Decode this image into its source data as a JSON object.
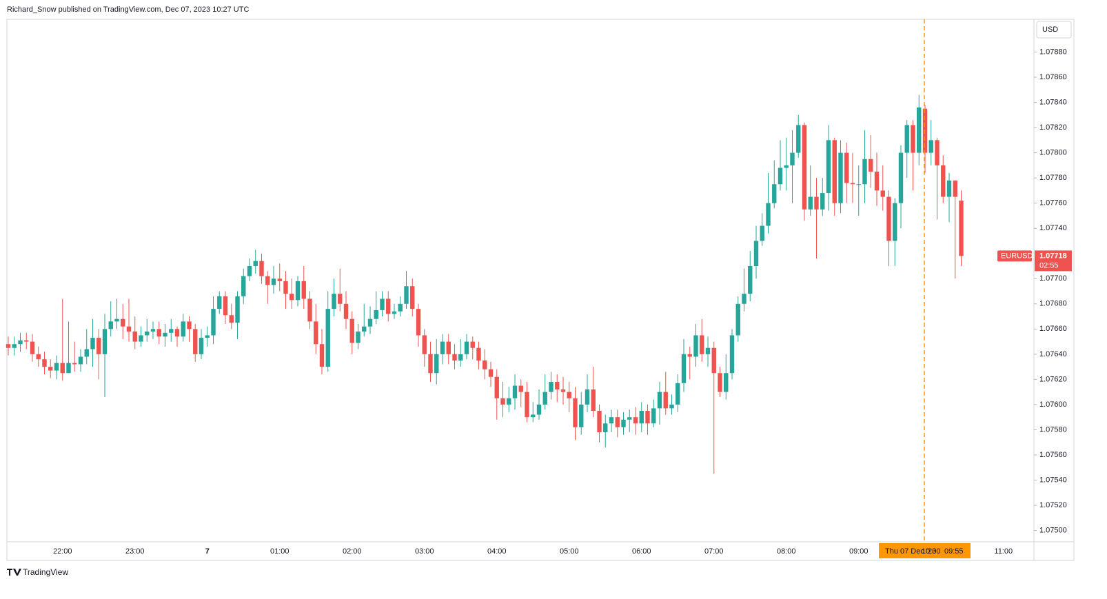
{
  "chart_data": {
    "type": "candlestick",
    "attribution": "Richard_Snow published on TradingView.com, Dec 07, 2023 10:27 UTC",
    "currency": "USD",
    "brand": "TradingView",
    "up_color": "#26a69a",
    "down_color": "#ef5350",
    "crosshair": {
      "date": "Thu 07 Dec '23",
      "time": "09:55"
    },
    "last_price": {
      "symbol": "EURUSD",
      "value": 1.07718,
      "countdown": "02:55"
    },
    "ylim": [
      1.07491,
      1.07906
    ],
    "yticks": [
      {
        "value": 1.075,
        "label": "1.07500"
      },
      {
        "value": 1.0752,
        "label": "1.07520"
      },
      {
        "value": 1.0754,
        "label": "1.07540"
      },
      {
        "value": 1.0756,
        "label": "1.07560"
      },
      {
        "value": 1.0758,
        "label": "1.07580"
      },
      {
        "value": 1.076,
        "label": "1.07600"
      },
      {
        "value": 1.0762,
        "label": "1.07620"
      },
      {
        "value": 1.0764,
        "label": "1.07640"
      },
      {
        "value": 1.0766,
        "label": "1.07660"
      },
      {
        "value": 1.0768,
        "label": "1.07680"
      },
      {
        "value": 1.077,
        "label": "1.07700"
      },
      {
        "value": 1.0774,
        "label": "1.07740"
      },
      {
        "value": 1.0776,
        "label": "1.07760"
      },
      {
        "value": 1.0778,
        "label": "1.07780"
      },
      {
        "value": 1.078,
        "label": "1.07800"
      },
      {
        "value": 1.0782,
        "label": "1.07820"
      },
      {
        "value": 1.0784,
        "label": "1.07840"
      },
      {
        "value": 1.0786,
        "label": "1.07860"
      },
      {
        "value": 1.0788,
        "label": "1.07880"
      }
    ],
    "categories": [
      null,
      null,
      null,
      null,
      null,
      null,
      null,
      null,
      null,
      "22:00",
      null,
      null,
      null,
      null,
      null,
      null,
      null,
      null,
      null,
      null,
      null,
      "23:00",
      null,
      null,
      null,
      null,
      null,
      null,
      null,
      null,
      null,
      null,
      null,
      "7",
      null,
      null,
      null,
      null,
      null,
      null,
      null,
      null,
      null,
      null,
      null,
      "01:00",
      null,
      null,
      null,
      null,
      null,
      null,
      null,
      null,
      null,
      null,
      null,
      "02:00",
      null,
      null,
      null,
      null,
      null,
      null,
      null,
      null,
      null,
      null,
      null,
      "03:00",
      null,
      null,
      null,
      null,
      null,
      null,
      null,
      null,
      null,
      null,
      null,
      "04:00",
      null,
      null,
      null,
      null,
      null,
      null,
      null,
      null,
      null,
      null,
      null,
      "05:00",
      null,
      null,
      null,
      null,
      null,
      null,
      null,
      null,
      null,
      null,
      null,
      "06:00",
      null,
      null,
      null,
      null,
      null,
      null,
      null,
      null,
      null,
      null,
      null,
      "07:00",
      null,
      null,
      null,
      null,
      null,
      null,
      null,
      null,
      null,
      null,
      null,
      "08:00",
      null,
      null,
      null,
      null,
      null,
      null,
      null,
      null,
      null,
      null,
      null,
      "09:00",
      null,
      null,
      null,
      null,
      null,
      null,
      null,
      null,
      null,
      null,
      null,
      "10:00",
      null,
      null,
      null,
      null,
      null,
      null,
      null,
      null,
      null,
      null,
      null,
      "11:00"
    ],
    "open": [
      1.07648,
      1.07645,
      1.07648,
      1.07651,
      1.0765,
      1.0764,
      1.07636,
      1.0763,
      1.07627,
      1.07633,
      1.07625,
      1.07633,
      1.07632,
      1.07638,
      1.07644,
      1.07653,
      1.0764,
      1.0766,
      1.07666,
      1.07668,
      1.07662,
      1.07658,
      1.0765,
      1.07655,
      1.07658,
      1.0766,
      1.07654,
      1.07657,
      1.0766,
      1.07654,
      1.07666,
      1.0766,
      1.0764,
      1.07653,
      1.07655,
      1.07676,
      1.07686,
      1.07671,
      1.07665,
      1.07686,
      1.07702,
      1.0771,
      1.07714,
      1.07702,
      1.07695,
      1.077,
      1.07698,
      1.07688,
      1.07683,
      1.07698,
      1.07684,
      1.07666,
      1.07648,
      1.0763,
      1.07676,
      1.07688,
      1.0768,
      1.07668,
      1.07649,
      1.07658,
      1.07662,
      1.07668,
      1.07675,
      1.07684,
      1.07672,
      1.07674,
      1.0768,
      1.07694,
      1.07676,
      1.07655,
      1.0764,
      1.07625,
      1.0764,
      1.0765,
      1.0764,
      1.07635,
      1.0764,
      1.0765,
      1.07645,
      1.07635,
      1.07628,
      1.07622,
      1.07605,
      1.076,
      1.07605,
      1.07615,
      1.0761,
      1.0759,
      1.07592,
      1.076,
      1.0761,
      1.07618,
      1.07612,
      1.0761,
      1.07605,
      1.07582,
      1.076,
      1.07612,
      1.07595,
      1.07578,
      1.07585,
      1.0759,
      1.07582,
      1.07588,
      1.0759,
      1.07585,
      1.07595,
      1.07585,
      1.07597,
      1.0761,
      1.07597,
      1.076,
      1.07617,
      1.0764,
      1.07638,
      1.07655,
      1.0764,
      1.07645,
      1.07625,
      1.0761,
      1.07625,
      1.07655,
      1.0768,
      1.07688,
      1.0771,
      1.0773,
      1.07742,
      1.0776,
      1.07775,
      1.07788,
      1.0779,
      1.078,
      1.07822,
      1.07755,
      1.07765,
      1.07755,
      1.07768,
      1.0781,
      1.0776,
      1.078,
      1.07776,
      1.07775,
      1.07775,
      1.07795,
      1.07785,
      1.0777,
      1.07765,
      1.0773,
      1.0776,
      1.078,
      1.07822,
      1.078,
      1.07835,
      1.078,
      1.0781,
      1.0779,
      1.07765,
      1.07778,
      1.07762,
      null,
      null,
      null,
      null,
      null,
      null,
      null
    ],
    "high": [
      1.07654,
      1.07654,
      1.07657,
      1.07657,
      1.07656,
      1.07646,
      1.07642,
      1.07636,
      1.07639,
      1.07684,
      1.07666,
      1.0765,
      1.07644,
      1.0766,
      1.07668,
      1.0766,
      1.07672,
      1.07682,
      1.07684,
      1.0768,
      1.07684,
      1.0767,
      1.07662,
      1.07668,
      1.07666,
      1.07666,
      1.07664,
      1.07668,
      1.07662,
      1.07672,
      1.0767,
      1.07664,
      1.0766,
      1.07662,
      1.07686,
      1.0769,
      1.0769,
      1.0768,
      1.0769,
      1.07708,
      1.07716,
      1.07723,
      1.0772,
      1.07706,
      1.0771,
      1.07712,
      1.07706,
      1.077,
      1.07702,
      1.0771,
      1.0769,
      1.0768,
      1.0766,
      1.0769,
      1.077,
      1.07708,
      1.0769,
      1.07674,
      1.07664,
      1.0768,
      1.07678,
      1.0769,
      1.0769,
      1.0769,
      1.0768,
      1.07686,
      1.07706,
      1.077,
      1.0768,
      1.0766,
      1.0765,
      1.07652,
      1.07656,
      1.07656,
      1.07648,
      1.07652,
      1.07656,
      1.07654,
      1.0765,
      1.07644,
      1.07634,
      1.07628,
      1.07618,
      1.07614,
      1.07624,
      1.0762,
      1.07618,
      1.07602,
      1.07612,
      1.07624,
      1.07626,
      1.07624,
      1.07622,
      1.07618,
      1.07614,
      1.0761,
      1.07624,
      1.0763,
      1.076,
      1.07592,
      1.07596,
      1.07596,
      1.07594,
      1.07596,
      1.07598,
      1.07602,
      1.076,
      1.07604,
      1.07618,
      1.07626,
      1.07608,
      1.07624,
      1.07652,
      1.07646,
      1.07664,
      1.07668,
      1.07654,
      1.0765,
      1.0763,
      1.0764,
      1.0766,
      1.07686,
      1.07708,
      1.07722,
      1.07742,
      1.07752,
      1.07784,
      1.07794,
      1.0781,
      1.07812,
      1.07818,
      1.0783,
      1.07824,
      1.0779,
      1.0778,
      1.0778,
      1.07822,
      1.07812,
      1.0781,
      1.07808,
      1.078,
      1.0779,
      1.07818,
      1.07814,
      1.078,
      1.0779,
      1.0777,
      1.07764,
      1.07806,
      1.07826,
      1.07826,
      1.07846,
      1.07838,
      1.07826,
      1.07812,
      1.07798,
      1.07784,
      1.07778,
      1.0777,
      null,
      null,
      null,
      null,
      null,
      null,
      null
    ],
    "low": [
      1.07639,
      1.07639,
      1.07642,
      1.07644,
      1.07634,
      1.0763,
      1.07624,
      1.07621,
      1.0762,
      1.07619,
      1.07627,
      1.07626,
      1.07626,
      1.07632,
      1.0763,
      1.0762,
      1.07606,
      1.07654,
      1.0766,
      1.07652,
      1.0765,
      1.07644,
      1.07646,
      1.0765,
      1.07652,
      1.07648,
      1.07646,
      1.0765,
      1.07646,
      1.0765,
      1.0765,
      1.07634,
      1.07636,
      1.07646,
      1.07648,
      1.07672,
      1.07664,
      1.0766,
      1.07652,
      1.0768,
      1.07698,
      1.07704,
      1.07696,
      1.0768,
      1.07688,
      1.0769,
      1.07676,
      1.07676,
      1.07678,
      1.07676,
      1.0766,
      1.0764,
      1.07624,
      1.07626,
      1.0767,
      1.07674,
      1.0766,
      1.0764,
      1.07644,
      1.07654,
      1.07656,
      1.07664,
      1.0767,
      1.07666,
      1.07668,
      1.0767,
      1.07676,
      1.0767,
      1.07646,
      1.0763,
      1.07618,
      1.07616,
      1.07632,
      1.07632,
      1.07628,
      1.0763,
      1.07636,
      1.07636,
      1.07628,
      1.0762,
      1.07614,
      1.07588,
      1.0759,
      1.07594,
      1.07596,
      1.07598,
      1.07586,
      1.07586,
      1.07588,
      1.07596,
      1.07604,
      1.07602,
      1.076,
      1.07594,
      1.07572,
      1.07576,
      1.07594,
      1.0759,
      1.0757,
      1.07566,
      1.07578,
      1.07574,
      1.07576,
      1.07578,
      1.07576,
      1.07578,
      1.07576,
      1.07582,
      1.07584,
      1.07592,
      1.07592,
      1.07594,
      1.0761,
      1.0762,
      1.0763,
      1.07634,
      1.0763,
      1.07545,
      1.07606,
      1.07604,
      1.0762,
      1.0765,
      1.07674,
      1.07682,
      1.077,
      1.07726,
      1.07736,
      1.07756,
      1.0777,
      1.0777,
      1.0776,
      1.07796,
      1.07746,
      1.0775,
      1.07716,
      1.0775,
      1.07754,
      1.0775,
      1.07752,
      1.0776,
      1.0776,
      1.0775,
      1.0776,
      1.07772,
      1.07758,
      1.07754,
      1.0771,
      1.0771,
      1.0774,
      1.0778,
      1.0777,
      1.0779,
      1.07784,
      1.0779,
      1.07747,
      1.0776,
      1.07745,
      1.077,
      1.0771,
      null,
      null,
      null,
      null,
      null,
      null,
      null
    ],
    "close": [
      1.07645,
      1.07648,
      1.07651,
      1.0765,
      1.0764,
      1.07636,
      1.0763,
      1.07627,
      1.07633,
      1.07625,
      1.07633,
      1.07632,
      1.07638,
      1.07644,
      1.07653,
      1.0764,
      1.0766,
      1.07666,
      1.07668,
      1.07662,
      1.07658,
      1.0765,
      1.07655,
      1.07658,
      1.0766,
      1.07654,
      1.07657,
      1.0766,
      1.07654,
      1.07666,
      1.0766,
      1.0764,
      1.07653,
      1.07655,
      1.07676,
      1.07686,
      1.07671,
      1.07665,
      1.07686,
      1.07702,
      1.0771,
      1.07714,
      1.07702,
      1.07695,
      1.077,
      1.07698,
      1.07688,
      1.07683,
      1.07698,
      1.07684,
      1.07666,
      1.07648,
      1.0763,
      1.07676,
      1.07688,
      1.0768,
      1.07668,
      1.07649,
      1.07658,
      1.07662,
      1.07668,
      1.07675,
      1.07684,
      1.07672,
      1.07674,
      1.0768,
      1.07694,
      1.07676,
      1.07655,
      1.0764,
      1.07625,
      1.0764,
      1.0765,
      1.0764,
      1.07635,
      1.0764,
      1.0765,
      1.07645,
      1.07635,
      1.07628,
      1.07622,
      1.07605,
      1.076,
      1.07605,
      1.07615,
      1.0761,
      1.0759,
      1.07592,
      1.076,
      1.0761,
      1.07618,
      1.07612,
      1.0761,
      1.07605,
      1.07582,
      1.076,
      1.07612,
      1.07595,
      1.07578,
      1.07585,
      1.0759,
      1.07582,
      1.07588,
      1.0759,
      1.07585,
      1.07595,
      1.07585,
      1.07597,
      1.0761,
      1.07597,
      1.076,
      1.07617,
      1.0764,
      1.07638,
      1.07655,
      1.0764,
      1.07645,
      1.07625,
      1.0761,
      1.07625,
      1.07655,
      1.0768,
      1.07688,
      1.0771,
      1.0773,
      1.07742,
      1.0776,
      1.07775,
      1.07788,
      1.0779,
      1.078,
      1.07822,
      1.07755,
      1.07765,
      1.07755,
      1.07768,
      1.0781,
      1.0776,
      1.078,
      1.07776,
      1.07775,
      1.07775,
      1.07795,
      1.07785,
      1.0777,
      1.07765,
      1.0773,
      1.0776,
      1.078,
      1.07822,
      1.078,
      1.07836,
      1.078,
      1.0781,
      1.0779,
      1.07765,
      1.07778,
      1.07765,
      1.07718,
      null,
      null,
      null,
      null,
      null,
      null,
      null
    ]
  }
}
